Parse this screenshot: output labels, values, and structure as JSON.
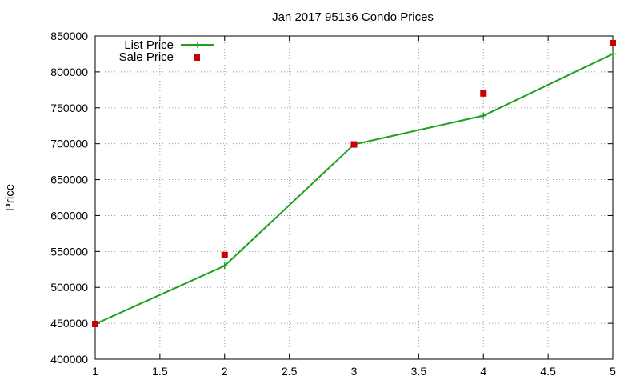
{
  "chart_data": {
    "type": "line",
    "title": "Jan 2017 95136 Condo Prices",
    "xlabel": "",
    "ylabel": "Price",
    "xlim": [
      1,
      5
    ],
    "ylim": [
      400000,
      850000
    ],
    "x_ticks": [
      "1",
      "1.5",
      "2",
      "2.5",
      "3",
      "3.5",
      "4",
      "4.5",
      "5"
    ],
    "y_ticks": [
      "400000",
      "450000",
      "500000",
      "550000",
      "600000",
      "650000",
      "700000",
      "750000",
      "800000",
      "850000"
    ],
    "grid": true,
    "legend_position": "top-left",
    "series": [
      {
        "name": "List Price",
        "style": "line+cross",
        "color": "#1aa01a",
        "x": [
          1,
          2,
          3,
          4,
          5
        ],
        "y": [
          449000,
          530000,
          699000,
          739000,
          825000
        ]
      },
      {
        "name": "Sale Price",
        "style": "square-points",
        "color": "#cc0000",
        "x": [
          1,
          2,
          3,
          4,
          5
        ],
        "y": [
          449000,
          545000,
          699000,
          770000,
          840000
        ]
      }
    ]
  }
}
